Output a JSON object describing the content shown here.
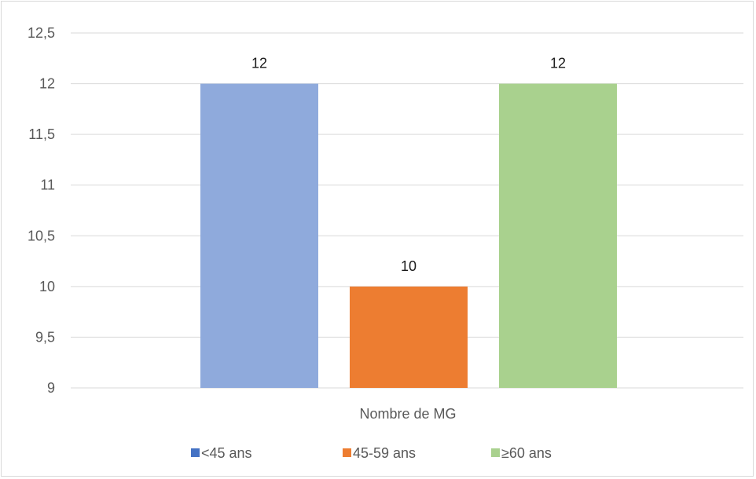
{
  "chart_data": {
    "type": "bar",
    "categories": [
      "Nombre de MG"
    ],
    "series": [
      {
        "name": "<45 ans",
        "values": [
          12
        ],
        "color": "#8faadc",
        "legend_color": "#4472c4"
      },
      {
        "name": "45-59 ans",
        "values": [
          10
        ],
        "color": "#ed7d31",
        "legend_color": "#ed7d31"
      },
      {
        "name": "≥60 ans",
        "values": [
          12
        ],
        "color": "#a9d18e",
        "legend_color": "#a9d18e"
      }
    ],
    "ylim": [
      9,
      12.5
    ],
    "yticks": [
      "9",
      "9,5",
      "10",
      "10,5",
      "11",
      "11,5",
      "12",
      "12,5"
    ],
    "ytick_values": [
      9,
      9.5,
      10,
      10.5,
      11,
      11.5,
      12,
      12.5
    ],
    "data_labels": [
      "12",
      "10",
      "12"
    ],
    "grid": true,
    "legend_position": "bottom",
    "gridline_color": "#d9d9d9"
  }
}
